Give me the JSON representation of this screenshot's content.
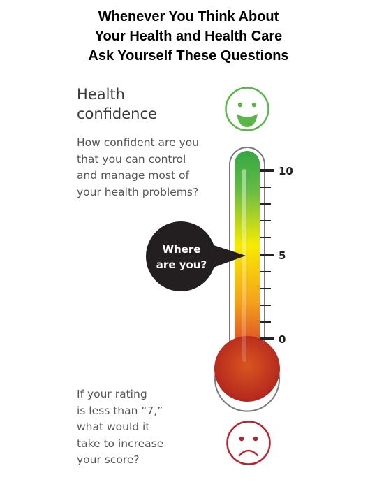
{
  "header": {
    "lines": [
      "Whenever You Think About",
      "Your Health and Health Care",
      "Ask Yourself These Questions"
    ]
  },
  "title": {
    "lines": [
      "Health",
      "confidence"
    ]
  },
  "question": {
    "lines": [
      "How confident are you",
      "that you can control",
      "and manage most of",
      "your health problems?"
    ]
  },
  "bubble": {
    "lines": [
      "Where",
      "are you?"
    ]
  },
  "scale": {
    "top": "10",
    "middle": "5",
    "bottom": "0"
  },
  "prompt": {
    "lines": [
      "If your rating",
      "is less than “7,”",
      "what would it",
      "take to increase",
      "your score?"
    ]
  },
  "icons": {
    "top": "smiley-face-icon",
    "bottom": "sad-face-icon"
  },
  "colors": {
    "happy": "#5bb647",
    "sad": "#b9222c",
    "bubble": "#231f20",
    "gradient_top": "#35a642",
    "gradient_middle": "#f7eb00",
    "gradient_lower": "#e88a1a",
    "gradient_bottom": "#b3261e"
  }
}
